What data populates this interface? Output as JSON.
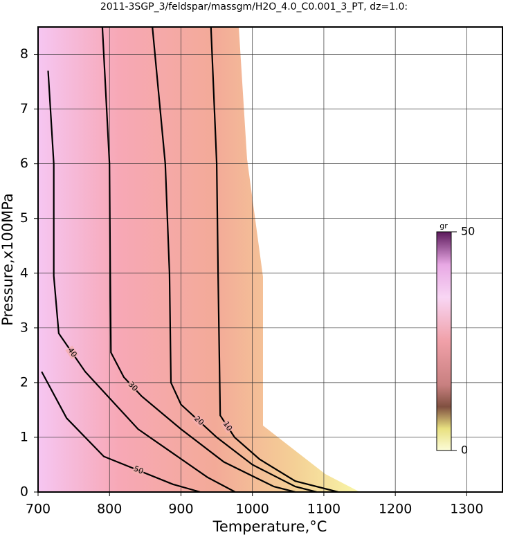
{
  "chart_data": {
    "type": "contour",
    "title": "2011-3SGP_3/feldspar/massgm/H2O_4.0_C0.001_3_PT, dz=1.0:",
    "x_label": "Temperature,°C",
    "y_label": "Pressure,x100MPa",
    "xlim": [
      700,
      1350
    ],
    "ylim": [
      0,
      8.5
    ],
    "xticks": [
      700,
      800,
      900,
      1000,
      1100,
      1200,
      1300
    ],
    "yticks": [
      0,
      1,
      2,
      3,
      4,
      5,
      6,
      7,
      8
    ],
    "grid": true,
    "color": "#000000",
    "colorbar": {
      "label": "gr",
      "lim": [
        0,
        50
      ],
      "ticks": [
        0,
        50
      ]
    },
    "series": [
      {
        "name": "10",
        "x": [
          942,
          950,
          952,
          955,
          975,
          1010,
          1060,
          1120
        ],
        "y": [
          8.5,
          6,
          4,
          1.4,
          1.0,
          0.6,
          0.2,
          0
        ]
      },
      {
        "name": "20",
        "x": [
          860,
          878,
          884,
          886,
          900,
          950,
          1000,
          1060,
          1090
        ],
        "y": [
          8.5,
          6,
          4,
          2.0,
          1.6,
          1.0,
          0.5,
          0.1,
          0
        ]
      },
      {
        "name": "30",
        "x": [
          790,
          800,
          801,
          802,
          820,
          845,
          900,
          960,
          1030,
          1060
        ],
        "y": [
          8.5,
          6,
          4,
          2.55,
          2.1,
          1.75,
          1.15,
          0.55,
          0.1,
          0
        ]
      },
      {
        "name": "40",
        "x": [
          714,
          722,
          722,
          729,
          766,
          840,
          937,
          976
        ],
        "y": [
          7.7,
          6.0,
          3.95,
          2.9,
          2.2,
          1.15,
          0.27,
          0
        ]
      },
      {
        "name": "50",
        "x": [
          705,
          740,
          792,
          889,
          927
        ],
        "y": [
          2.2,
          1.35,
          0.65,
          0.14,
          0
        ]
      }
    ]
  }
}
